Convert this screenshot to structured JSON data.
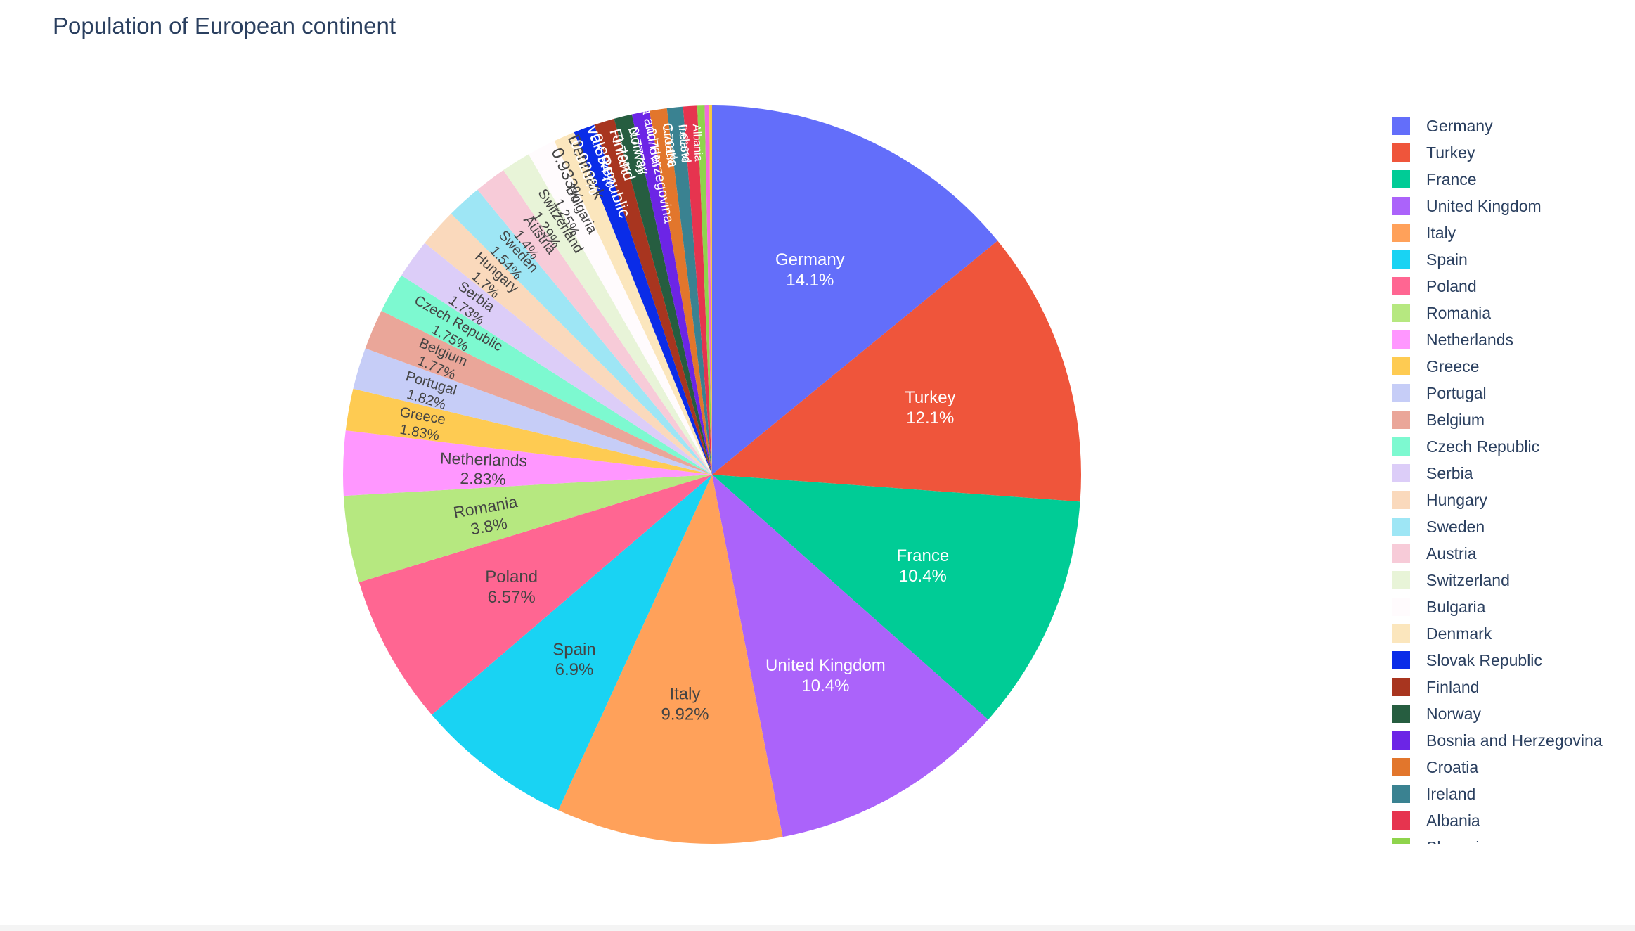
{
  "chart_data": {
    "type": "pie",
    "title": "Population of European continent",
    "legend_position": "right",
    "slices": [
      {
        "label": "Germany",
        "percent": 14.1,
        "percent_text": "14.1%",
        "color": "#636efa"
      },
      {
        "label": "Turkey",
        "percent": 12.1,
        "percent_text": "12.1%",
        "color": "#EF553B"
      },
      {
        "label": "France",
        "percent": 10.4,
        "percent_text": "10.4%",
        "color": "#00cc96"
      },
      {
        "label": "United Kingdom",
        "percent": 10.4,
        "percent_text": "10.4%",
        "color": "#ab63fa"
      },
      {
        "label": "Italy",
        "percent": 9.92,
        "percent_text": "9.92%",
        "color": "#FFA15A"
      },
      {
        "label": "Spain",
        "percent": 6.9,
        "percent_text": "6.9%",
        "color": "#19d3f3"
      },
      {
        "label": "Poland",
        "percent": 6.57,
        "percent_text": "6.57%",
        "color": "#FF6692"
      },
      {
        "label": "Romania",
        "percent": 3.8,
        "percent_text": "3.8%",
        "color": "#B6E880"
      },
      {
        "label": "Netherlands",
        "percent": 2.83,
        "percent_text": "2.83%",
        "color": "#FF97FF"
      },
      {
        "label": "Greece",
        "percent": 1.83,
        "percent_text": "1.83%",
        "color": "#FECB52"
      },
      {
        "label": "Portugal",
        "percent": 1.82,
        "percent_text": "1.82%",
        "color": "#c6cdf7"
      },
      {
        "label": "Belgium",
        "percent": 1.77,
        "percent_text": "1.77%",
        "color": "#eaa699"
      },
      {
        "label": "Czech Republic",
        "percent": 1.75,
        "percent_text": "1.75%",
        "color": "#7df9d0"
      },
      {
        "label": "Serbia",
        "percent": 1.73,
        "percent_text": "1.73%",
        "color": "#dccdf8"
      },
      {
        "label": "Hungary",
        "percent": 1.7,
        "percent_text": "1.7%",
        "color": "#fad9bc"
      },
      {
        "label": "Sweden",
        "percent": 1.54,
        "percent_text": "1.54%",
        "color": "#9ee6f5"
      },
      {
        "label": "Austria",
        "percent": 1.4,
        "percent_text": "1.4%",
        "color": "#f7cbd8"
      },
      {
        "label": "Switzerland",
        "percent": 1.29,
        "percent_text": "1.29%",
        "color": "#e8f4d8"
      },
      {
        "label": "Bulgaria",
        "percent": 1.25,
        "percent_text": "1.25%",
        "color": "#fffbfd"
      },
      {
        "label": "Denmark",
        "percent": 0.933,
        "percent_text": "0.933%",
        "color": "#fbe6bd"
      },
      {
        "label": "Slovak Republic",
        "percent": 0.929,
        "percent_text": "0.929%",
        "color": "#0a2ce8"
      },
      {
        "label": "Finland",
        "percent": 0.894,
        "percent_text": "0.894%",
        "color": "#a8351f"
      },
      {
        "label": "Norway",
        "percent": 0.79,
        "percent_text": "0.79%",
        "color": "#265d40"
      },
      {
        "label": "Bosnia and Herzegovina",
        "percent": 0.777,
        "percent_text": "0.777%",
        "color": "#6c25e6"
      },
      {
        "label": "Croatia",
        "percent": 0.76,
        "percent_text": "0.76%",
        "color": "#e2762c"
      },
      {
        "label": "Ireland",
        "percent": 0.701,
        "percent_text": "0.701%",
        "color": "#3a8291"
      },
      {
        "label": "Albania",
        "percent": 0.616,
        "percent_text": "0.616%",
        "color": "#e6344f"
      },
      {
        "label": "Slovenia",
        "percent": 0.32,
        "percent_text": "",
        "color": "#8fd44c"
      },
      {
        "label": "",
        "percent": 0.2,
        "percent_text": "",
        "color": "#f26bdb"
      },
      {
        "label": "",
        "percent": 0.12,
        "percent_text": "",
        "color": "#f5c842"
      }
    ],
    "legend_visible_count": 28,
    "legend_last_partial_text": "Sl"
  }
}
